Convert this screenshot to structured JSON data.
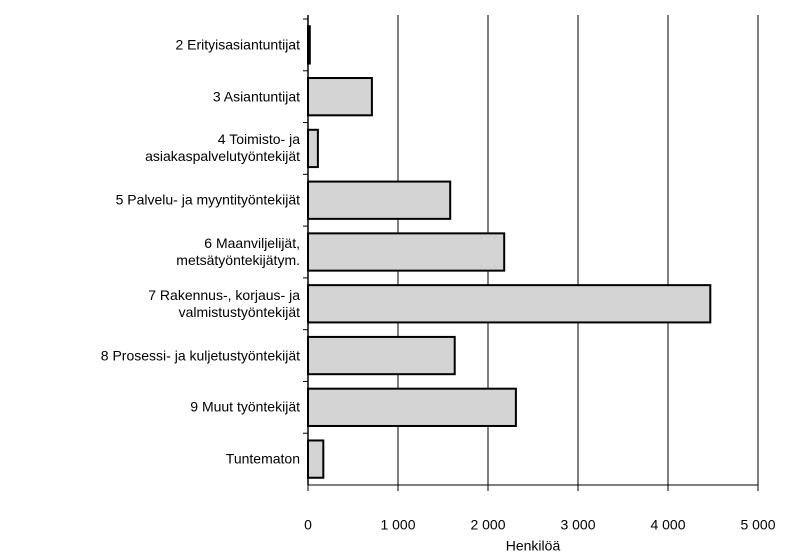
{
  "chart_data": {
    "type": "barh",
    "categories": [
      "2 Erityisasiantuntijat",
      "3 Asiantuntijat",
      "4 Toimisto- ja\nasiakaspalvelutyöntekijät",
      "5 Palvelu- ja myyntityöntekijät",
      "6 Maanviljelijät,\nmetsätyöntekijätym.",
      "7 Rakennus-, korjaus- ja\nvalmistustyöntekijät",
      "8 Prosessi- ja kuljetustyöntekijät",
      "9 Muut työntekijät",
      "Tuntematon"
    ],
    "values": [
      20,
      710,
      110,
      1580,
      2180,
      4470,
      1630,
      2310,
      170
    ],
    "color": "#d4d4d4",
    "xlabel": "Henkilöä",
    "xlim": [
      0,
      5000
    ],
    "xticks": [
      0,
      {
        "value": 1000,
        "label": "1 000"
      },
      {
        "value": 2000,
        "label": "2 000"
      },
      {
        "value": 3000,
        "label": "3 000"
      },
      {
        "value": 4000,
        "label": "4 000"
      },
      {
        "value": 5000,
        "label": "5 000"
      }
    ],
    "grid": true
  }
}
